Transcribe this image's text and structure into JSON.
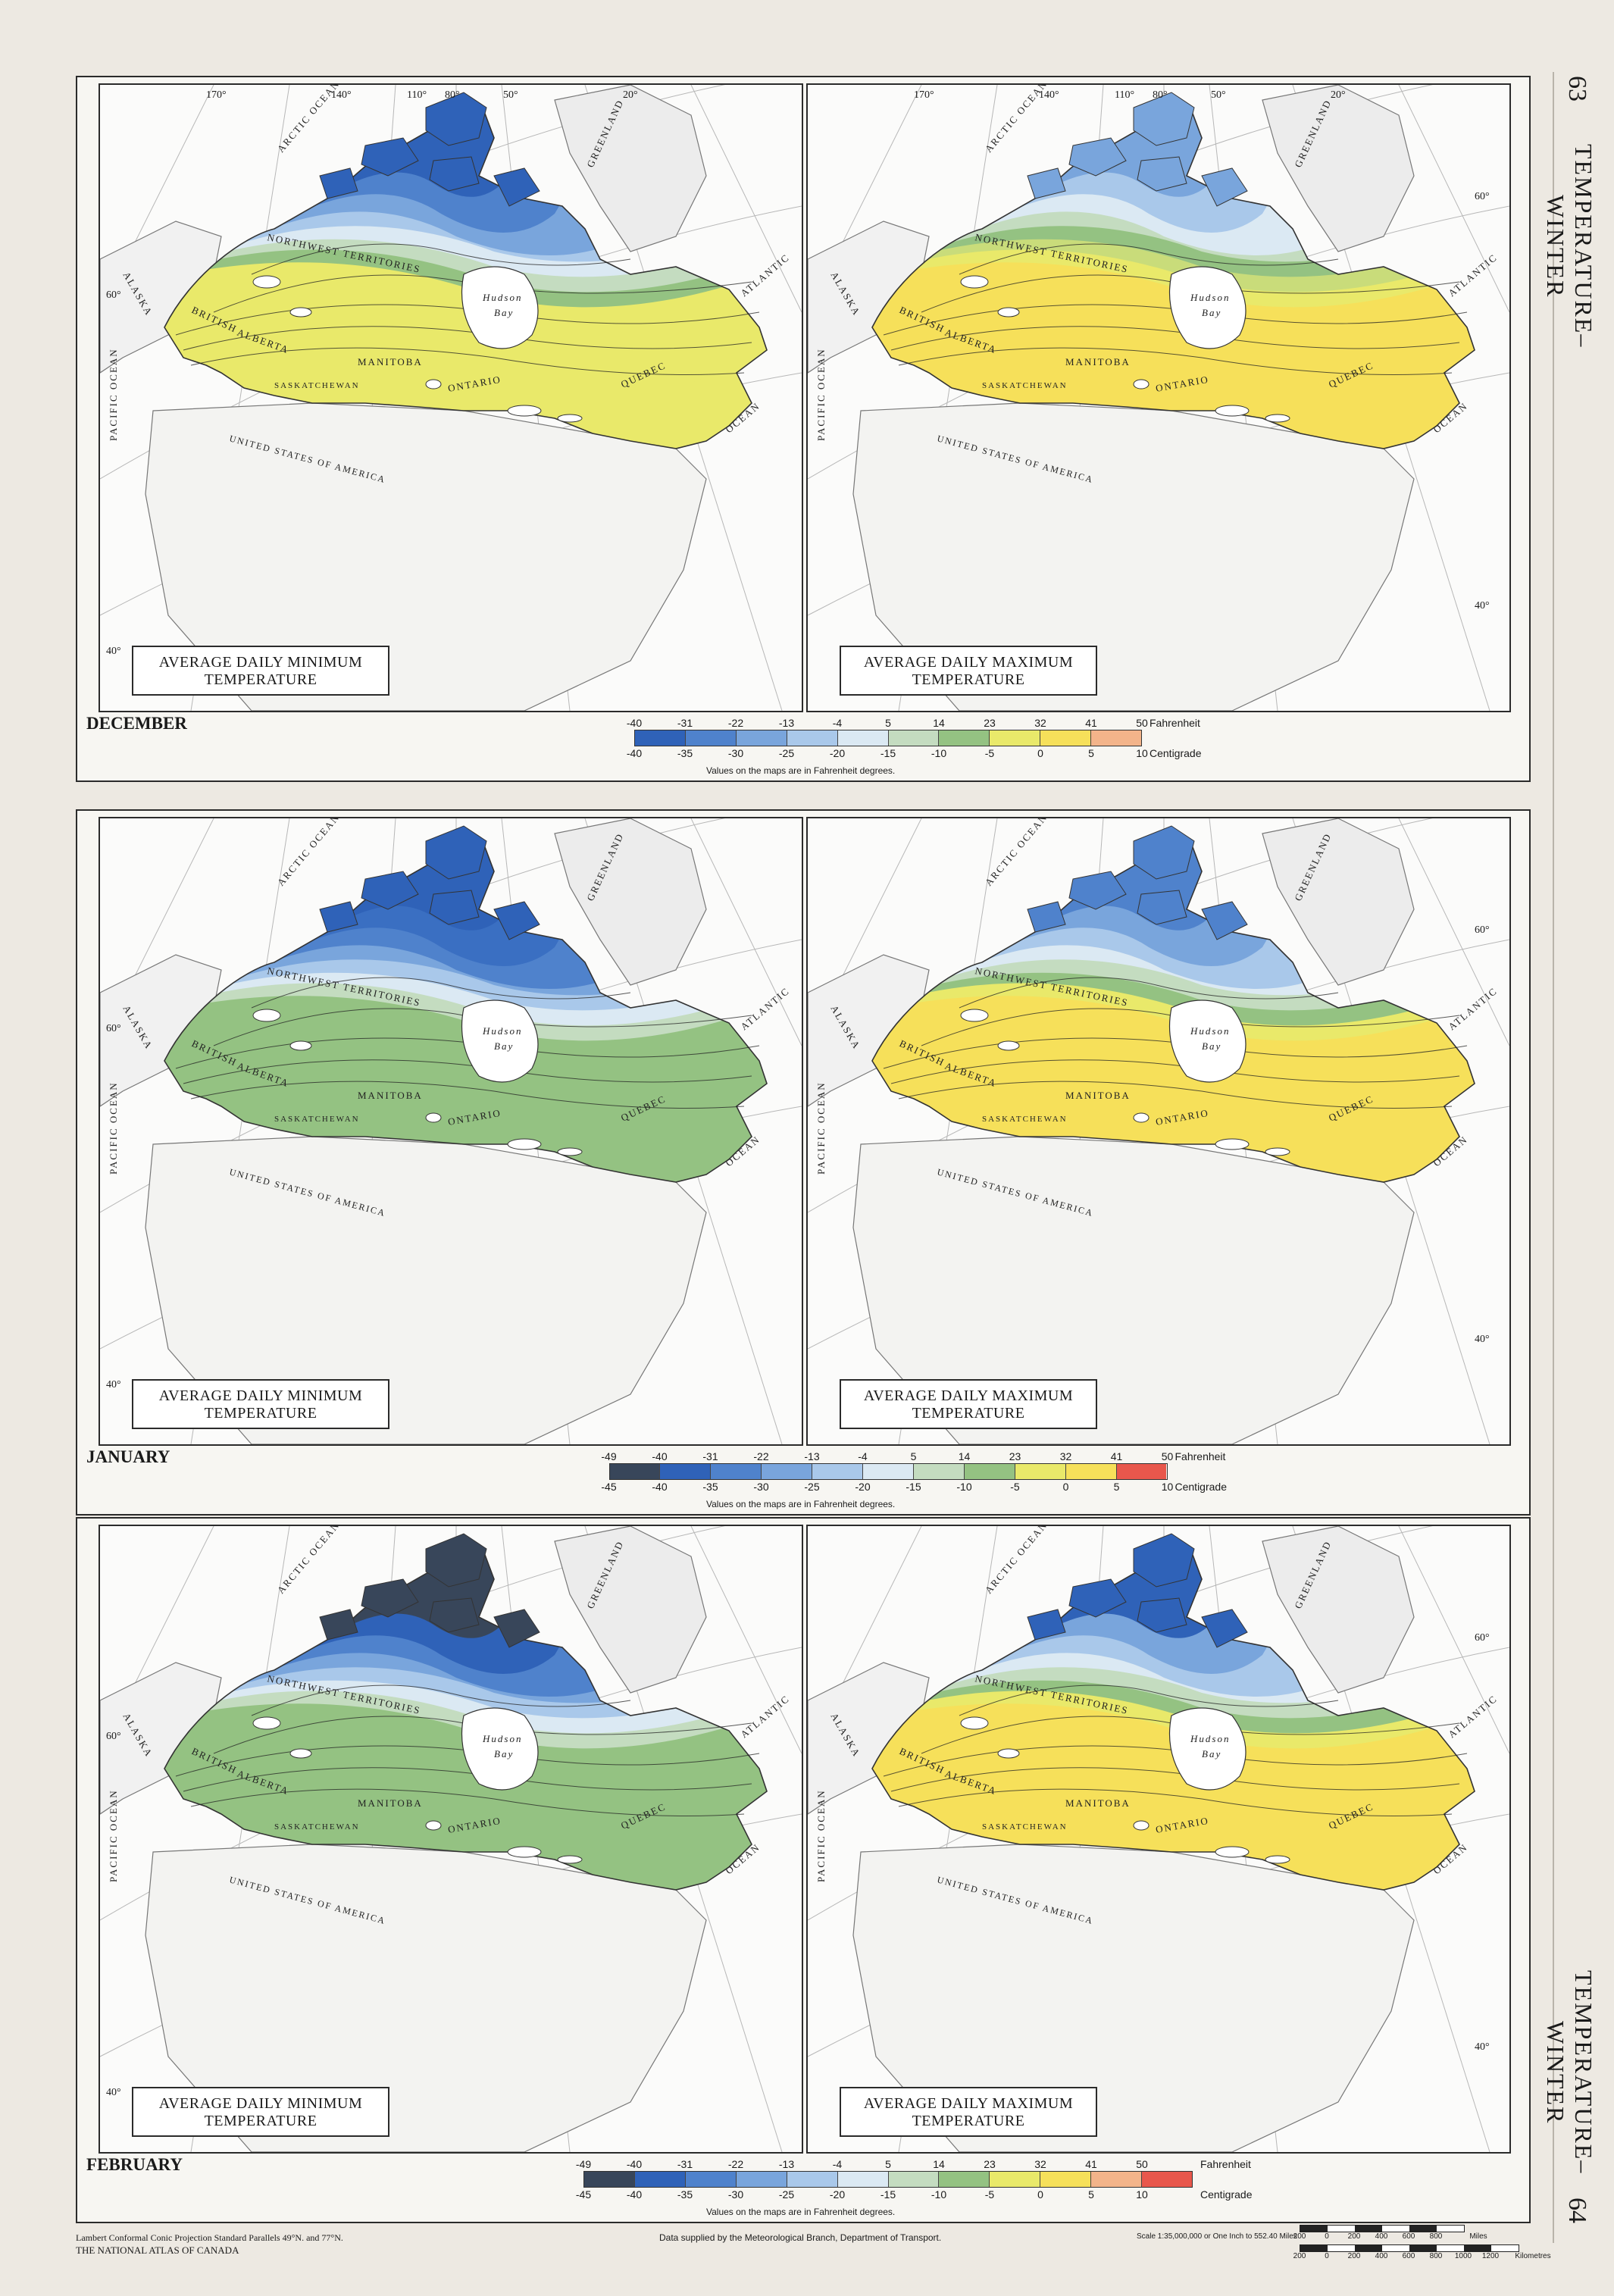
{
  "side": {
    "title_top": "TEMPERATURE–WINTER",
    "title_bottom": "TEMPERATURE–WINTER",
    "page_top": "63",
    "page_bottom": "64"
  },
  "longitudes": [
    "170°",
    "140°",
    "110°",
    "80°",
    "50°",
    "20°"
  ],
  "latitudes": {
    "lat60": "60°",
    "lat40": "40°"
  },
  "panels": {
    "min_title": "AVERAGE DAILY MINIMUM TEMPERATURE",
    "max_title": "AVERAGE DAILY MAXIMUM TEMPERATURE"
  },
  "map_labels": {
    "pacific": "PACIFIC OCEAN",
    "alaska": "ALASKA",
    "arctic": "ARCTIC OCEAN",
    "greenland": "GREENLAND",
    "nwt": "NORTHWEST TERRITORIES",
    "hudson": "Hudson",
    "bay": "Bay",
    "manitoba": "MANITOBA",
    "saskatchewan": "SASKATCHEWAN",
    "alberta": "ALBERTA",
    "british": "BRITISH",
    "ontario": "ONTARIO",
    "quebec": "QUEBEC",
    "usa": "UNITED STATES OF AMERICA",
    "atlantic": "ATLANTIC",
    "ocean": "OCEAN"
  },
  "months": [
    {
      "name": "DECEMBER",
      "legend": {
        "fahrenheit": [
          "-40",
          "-31",
          "-22",
          "-13",
          "-4",
          "5",
          "14",
          "23",
          "32",
          "41",
          "50"
        ],
        "centigrade": [
          "-40",
          "-35",
          "-30",
          "-25",
          "-20",
          "-15",
          "-10",
          "-5",
          "0",
          "5",
          "10"
        ],
        "colors": [
          "#2f62b8",
          "#4f82cc",
          "#79a5dc",
          "#a9c8ea",
          "#dbe9f3",
          "#c4dcc0",
          "#94c282",
          "#e9e96a",
          "#f6e05a",
          "#f3b48a"
        ]
      }
    },
    {
      "name": "JANUARY",
      "legend": {
        "fahrenheit": [
          "-49",
          "-40",
          "-31",
          "-22",
          "-13",
          "-4",
          "5",
          "14",
          "23",
          "32",
          "41",
          "50"
        ],
        "centigrade": [
          "-45",
          "-40",
          "-35",
          "-30",
          "-25",
          "-20",
          "-15",
          "-10",
          "-5",
          "0",
          "5",
          "10"
        ],
        "colors": [
          "#38465a",
          "#2f62b8",
          "#4f82cc",
          "#79a5dc",
          "#a9c8ea",
          "#dbe9f3",
          "#c4dcc0",
          "#94c282",
          "#e9e96a",
          "#f6e05a",
          "#e8574c"
        ]
      }
    },
    {
      "name": "FEBRUARY",
      "legend": {
        "fahrenheit": [
          "-49",
          "-40",
          "-31",
          "-22",
          "-13",
          "-4",
          "5",
          "14",
          "23",
          "32",
          "41",
          "50"
        ],
        "centigrade": [
          "-45",
          "-40",
          "-35",
          "-30",
          "-25",
          "-20",
          "-15",
          "-10",
          "-5",
          "0",
          "5",
          "10"
        ],
        "colors": [
          "#38465a",
          "#2f62b8",
          "#4f82cc",
          "#79a5dc",
          "#a9c8ea",
          "#dbe9f3",
          "#c4dcc0",
          "#94c282",
          "#e9e96a",
          "#f6e05a",
          "#f3b48a",
          "#e8574c"
        ]
      }
    }
  ],
  "legend_units": {
    "fahrenheit": "Fahrenheit",
    "centigrade": "Centigrade"
  },
  "legend_note": "Values on the maps are in Fahrenheit degrees.",
  "footer": {
    "projection": "Lambert Conformal Conic Projection Standard Parallels 49°N. and 77°N.",
    "atlas": "THE NATIONAL ATLAS OF CANADA",
    "source": "Data supplied by the Meteorological Branch, Department of Transport.",
    "scale": "Scale 1:35,000,000 or One Inch to 552.40 Miles",
    "miles_ticks": [
      "200",
      "0",
      "200",
      "400",
      "600",
      "800",
      "Miles"
    ],
    "km_ticks": [
      "200",
      "0",
      "200",
      "400",
      "600",
      "800",
      "1000",
      "1200",
      "Kilometres"
    ]
  }
}
